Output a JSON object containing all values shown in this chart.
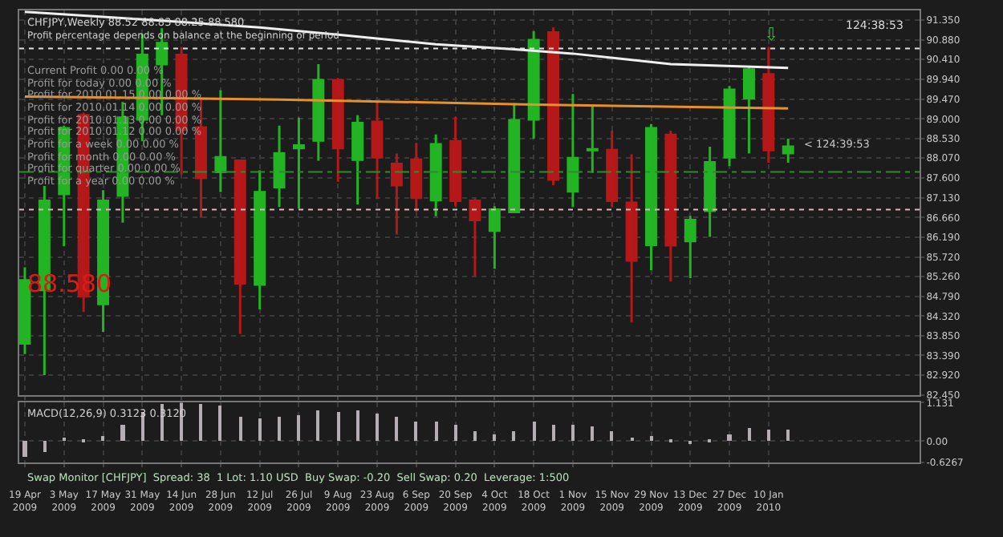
{
  "chart_data": [
    {
      "type": "candlestick",
      "title": "CHFJPY,Weekly 88.52 88.83 88.25 88.580",
      "subtitle": "Profit percentage depends on balance at the beginning of period",
      "annotations": [
        "Current Profit 0.00 0.00 %",
        "Profit for today 0.00 0.00 %",
        "Profit for 2010.01.15 0.00 0.00 %",
        "Profit for 2010.01.14 0.00 0.00 %",
        "Profit for 2010.01.13 0.00 0.00 %",
        "Profit for 2010.01.12 0.00 0.00 %",
        "Profit for a week 0.00 0.00 %",
        "Profit for month 0.00 0.00 %",
        "Profit for quarter 0.00 0.00 %",
        "Profit for a year 0.00 0.00 %",
        "124:38:53",
        "88.580",
        {
          "text": "< 124:39:53",
          "x": "2010-01-17",
          "y": 88.4
        },
        "⇩"
      ],
      "x": [
        "2009-04-19",
        "2009-04-26",
        "2009-05-03",
        "2009-05-10",
        "2009-05-17",
        "2009-05-24",
        "2009-05-31",
        "2009-06-07",
        "2009-06-14",
        "2009-06-21",
        "2009-06-28",
        "2009-07-05",
        "2009-07-12",
        "2009-07-19",
        "2009-07-26",
        "2009-08-02",
        "2009-08-09",
        "2009-08-16",
        "2009-08-23",
        "2009-08-30",
        "2009-09-06",
        "2009-09-13",
        "2009-09-20",
        "2009-09-27",
        "2009-10-04",
        "2009-10-11",
        "2009-10-18",
        "2009-10-25",
        "2009-11-01",
        "2009-11-08",
        "2009-11-15",
        "2009-11-22",
        "2009-11-29",
        "2009-12-06",
        "2009-12-13",
        "2009-12-20",
        "2009-12-27",
        "2010-01-03",
        "2010-01-10",
        "2010-01-17"
      ],
      "ohlc": [
        [
          83.67,
          85.48,
          83.42,
          85.17
        ],
        [
          84.94,
          87.41,
          82.92,
          87.06
        ],
        [
          87.22,
          88.84,
          85.98,
          88.78
        ],
        [
          89.09,
          89.15,
          84.42,
          84.79
        ],
        [
          84.61,
          87.31,
          83.95,
          87.06
        ],
        [
          87.18,
          89.4,
          86.54,
          89.03
        ],
        [
          88.99,
          91.02,
          88.47,
          90.52
        ],
        [
          90.3,
          91.15,
          89.09,
          90.8
        ],
        [
          90.52,
          90.71,
          87.68,
          88.74
        ],
        [
          88.8,
          89.5,
          86.66,
          87.6
        ],
        [
          87.74,
          89.68,
          87.26,
          88.09
        ],
        [
          88.01,
          88.03,
          83.9,
          85.1
        ],
        [
          85.07,
          87.78,
          84.48,
          87.26
        ],
        [
          87.38,
          88.84,
          86.91,
          88.18
        ],
        [
          88.31,
          89.03,
          86.87,
          88.37
        ],
        [
          88.49,
          90.3,
          88.01,
          89.92
        ],
        [
          89.92,
          89.96,
          87.51,
          88.31
        ],
        [
          88.03,
          89.09,
          86.97,
          88.9
        ],
        [
          88.93,
          89.4,
          87.1,
          88.09
        ],
        [
          87.93,
          88.18,
          86.26,
          87.43
        ],
        [
          88.03,
          88.43,
          86.79,
          87.13
        ],
        [
          87.07,
          88.63,
          86.69,
          88.4
        ],
        [
          88.47,
          89.05,
          86.93,
          87.06
        ],
        [
          87.06,
          87.1,
          85.27,
          86.6
        ],
        [
          86.35,
          86.93,
          85.44,
          86.85
        ],
        [
          86.79,
          89.38,
          86.79,
          88.97
        ],
        [
          88.99,
          91.08,
          88.53,
          90.87
        ],
        [
          91.05,
          91.17,
          87.43,
          87.56
        ],
        [
          87.28,
          89.59,
          86.91,
          88.07
        ],
        [
          88.26,
          89.3,
          87.72,
          88.28
        ],
        [
          88.26,
          88.72,
          86.91,
          87.06
        ],
        [
          87.01,
          88.16,
          84.17,
          85.64
        ],
        [
          86.01,
          88.88,
          85.41,
          88.78
        ],
        [
          88.62,
          88.72,
          85.14,
          86.0
        ],
        [
          86.1,
          86.7,
          85.22,
          86.6
        ],
        [
          86.82,
          88.34,
          86.2,
          87.97
        ],
        [
          88.09,
          89.78,
          87.88,
          89.69
        ],
        [
          89.49,
          90.25,
          88.18,
          90.17
        ],
        [
          90.06,
          90.71,
          87.96,
          88.26
        ],
        [
          88.19,
          88.53,
          87.96,
          88.34
        ]
      ],
      "colors": [
        "#22b422",
        "#22b422",
        "#22b422",
        "#b41818",
        "#22b422",
        "#22b422",
        "#22b422",
        "#22b422",
        "#b41818",
        "#b41818",
        "#22b422",
        "#b41818",
        "#22b422",
        "#22b422",
        "#22b422",
        "#22b422",
        "#b41818",
        "#22b422",
        "#b41818",
        "#b41818",
        "#b41818",
        "#22b422",
        "#b41818",
        "#b41818",
        "#22b422",
        "#22b422",
        "#22b422",
        "#b41818",
        "#22b422",
        "#22b422",
        "#b41818",
        "#b41818",
        "#22b422",
        "#b41818",
        "#22b422",
        "#22b422",
        "#22b422",
        "#22b422",
        "#b41818",
        "#22b422"
      ],
      "series": [
        {
          "type": "line",
          "color": "#f0f0f0",
          "x": [
            "2009-04-19",
            "2009-06-07",
            "2009-07-12",
            "2009-08-09",
            "2009-09-13",
            "2009-10-11",
            "2009-11-01",
            "2009-12-06",
            "2010-01-17"
          ],
          "values": [
            91.54,
            91.33,
            91.17,
            91.0,
            90.77,
            90.65,
            90.55,
            90.3,
            90.21
          ]
        },
        {
          "type": "line",
          "color": "#e8902a",
          "x": [
            "2009-04-19",
            "2009-07-19",
            "2009-10-18",
            "2010-01-17"
          ],
          "values": [
            89.53,
            89.46,
            89.34,
            89.25
          ]
        }
      ],
      "xlim": [
        "2009-04-17",
        "2010-03-05"
      ],
      "xticks": [
        {
          "value": "2009-04-19",
          "label": null
        },
        {
          "value": "2009-05-03",
          "label": null
        },
        {
          "value": "2009-05-17",
          "label": null
        },
        {
          "value": "2009-05-31",
          "label": null
        },
        {
          "value": "2009-06-14",
          "label": null
        },
        {
          "value": "2009-06-28",
          "label": null
        },
        {
          "value": "2009-07-12",
          "label": null
        },
        {
          "value": "2009-07-26",
          "label": null
        },
        {
          "value": "2009-08-09",
          "label": null
        },
        {
          "value": "2009-08-23",
          "label": null
        },
        {
          "value": "2009-09-06",
          "label": null
        },
        {
          "value": "2009-09-20",
          "label": null
        },
        {
          "value": "2009-10-04",
          "label": null
        },
        {
          "value": "2009-10-18",
          "label": null
        },
        {
          "value": "2009-11-01",
          "label": null
        },
        {
          "value": "2009-11-15",
          "label": null
        },
        {
          "value": "2009-11-29",
          "label": null
        },
        {
          "value": "2009-12-13",
          "label": null
        },
        {
          "value": "2009-12-27",
          "label": null
        },
        {
          "value": "2010-01-10",
          "label": null
        }
      ],
      "ylim": [
        82.45,
        91.57
      ],
      "yticks": [
        {
          "value": 82.45,
          "label": "82.450"
        },
        {
          "value": 82.92,
          "label": "82.920"
        },
        {
          "value": 83.39,
          "label": "83.390"
        },
        {
          "value": 83.85,
          "label": "83.850"
        },
        {
          "value": 84.32,
          "label": "84.320"
        },
        {
          "value": 84.79,
          "label": "84.790"
        },
        {
          "value": 85.26,
          "label": "85.260"
        },
        {
          "value": 85.72,
          "label": "85.720"
        },
        {
          "value": 86.19,
          "label": "86.190"
        },
        {
          "value": 86.66,
          "label": "86.660"
        },
        {
          "value": 87.13,
          "label": "87.130"
        },
        {
          "value": 87.6,
          "label": "87.600"
        },
        {
          "value": 88.07,
          "label": "88.070"
        },
        {
          "value": 88.53,
          "label": "88.530"
        },
        {
          "value": 89.0,
          "label": "89.000"
        },
        {
          "value": 89.47,
          "label": "89.470"
        },
        {
          "value": 89.94,
          "label": "89.940"
        },
        {
          "value": 90.41,
          "label": "90.410"
        },
        {
          "value": 90.88,
          "label": "90.880"
        },
        {
          "value": 91.35,
          "label": "91.350"
        }
      ],
      "ref_lines": [
        {
          "axis": "y",
          "value": 90.67,
          "color": "#e0e0e0",
          "line_style": "dotted"
        },
        {
          "axis": "y",
          "value": 87.74,
          "color": "#2e8b2e",
          "line_style": "dashdot"
        },
        {
          "axis": "y",
          "value": 86.85,
          "color": "#d8b8b8",
          "line_style": "dotted"
        }
      ],
      "grid": true,
      "tick_labels": "y"
    },
    {
      "type": "bar",
      "title": "MACD(12,26,9) 0.3123 0.3120",
      "annotations": [
        "Swap Monitor [CHFJPY]  Spread: 38  1 Lot: 1.10 USD  Buy Swap: -0.20  Sell Swap: 0.20  Leverage: 1:500"
      ],
      "x": [
        "2009-04-19",
        "2009-04-26",
        "2009-05-03",
        "2009-05-10",
        "2009-05-17",
        "2009-05-24",
        "2009-05-31",
        "2009-06-07",
        "2009-06-14",
        "2009-06-21",
        "2009-06-28",
        "2009-07-05",
        "2009-07-12",
        "2009-07-19",
        "2009-07-26",
        "2009-08-02",
        "2009-08-09",
        "2009-08-16",
        "2009-08-23",
        "2009-08-30",
        "2009-09-06",
        "2009-09-13",
        "2009-09-20",
        "2009-09-27",
        "2009-10-04",
        "2009-10-11",
        "2009-10-18",
        "2009-10-25",
        "2009-11-01",
        "2009-11-08",
        "2009-11-15",
        "2009-11-22",
        "2009-11-29",
        "2009-12-06",
        "2009-12-13",
        "2009-12-20",
        "2009-12-27",
        "2010-01-03",
        "2010-01-10",
        "2010-01-17"
      ],
      "values": [
        -0.47,
        -0.33,
        0.05,
        -0.01,
        0.16,
        0.46,
        0.84,
        1.1,
        1.13,
        1.09,
        1.05,
        0.73,
        0.68,
        0.71,
        0.74,
        0.9,
        0.87,
        0.88,
        0.82,
        0.7,
        0.56,
        0.57,
        0.45,
        0.29,
        0.19,
        0.3,
        0.57,
        0.48,
        0.45,
        0.43,
        0.29,
        0.05,
        0.16,
        -0.02,
        -0.1,
        -0.03,
        0.17,
        0.36,
        0.33,
        0.33
      ],
      "color": "#b4aeb4",
      "xlim": [
        "2009-04-17",
        "2010-03-05"
      ],
      "xticks": [
        {
          "value": "2009-04-19",
          "label": "19 Apr 2009"
        },
        {
          "value": "2009-05-03",
          "label": "3 May 2009"
        },
        {
          "value": "2009-05-17",
          "label": "17 May 2009"
        },
        {
          "value": "2009-05-31",
          "label": "31 May 2009"
        },
        {
          "value": "2009-06-14",
          "label": "14 Jun 2009"
        },
        {
          "value": "2009-06-28",
          "label": "28 Jun 2009"
        },
        {
          "value": "2009-07-12",
          "label": "12 Jul 2009"
        },
        {
          "value": "2009-07-26",
          "label": "26 Jul 2009"
        },
        {
          "value": "2009-08-09",
          "label": "9 Aug 2009"
        },
        {
          "value": "2009-08-23",
          "label": "23 Aug 2009"
        },
        {
          "value": "2009-09-06",
          "label": "6 Sep 2009"
        },
        {
          "value": "2009-09-20",
          "label": "20 Sep 2009"
        },
        {
          "value": "2009-10-04",
          "label": "4 Oct 2009"
        },
        {
          "value": "2009-10-18",
          "label": "18 Oct 2009"
        },
        {
          "value": "2009-11-01",
          "label": "1 Nov 2009"
        },
        {
          "value": "2009-11-15",
          "label": "15 Nov 2009"
        },
        {
          "value": "2009-11-29",
          "label": "29 Nov 2009"
        },
        {
          "value": "2009-12-13",
          "label": "13 Dec 2009"
        },
        {
          "value": "2009-12-27",
          "label": "27 Dec 2009"
        },
        {
          "value": "2010-01-10",
          "label": "10 Jan 2010"
        }
      ],
      "ylim": [
        -0.6267,
        1.131
      ],
      "yticks": [
        {
          "value": 1.131,
          "label": "1.131"
        },
        {
          "value": 0,
          "label": "0.00"
        },
        {
          "value": -0.6267,
          "label": "-0.6267"
        }
      ],
      "grid": true
    }
  ]
}
